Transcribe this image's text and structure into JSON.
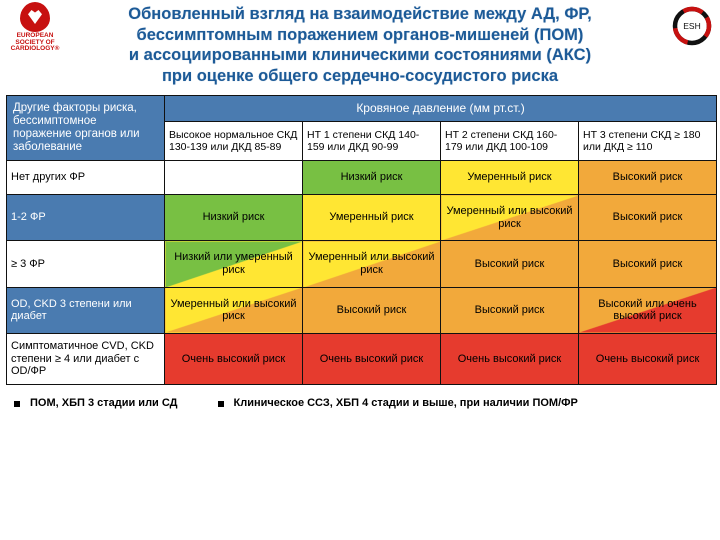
{
  "logos": {
    "esc_lines": [
      "EUROPEAN",
      "SOCIETY OF",
      "CARDIOLOGY®"
    ],
    "esh_label": "ESH"
  },
  "title_lines": [
    "Обновленный взгляд на взаимодействие между АД, ФР,",
    "бессимптомным поражением органов-мишеней (ПОМ)",
    "и ассоциированными клиническими состояниями (АКС)",
    "при оценке общего сердечно-сосудистого риска"
  ],
  "table": {
    "corner": "Другие факторы риска, бессимптомное поражение органов или заболевание",
    "bp_header": "Кровяное давление (мм рт.ст.)",
    "bp_cols": [
      "Высокое нормальное СКД 130-139 или ДКД 85-89",
      "НТ 1 степени СКД 140-159 или ДКД 90-99",
      "НТ 2 степени СКД 160-179 или ДКД 100-109",
      "НТ 3 степени СКД ≥ 180 или ДКД ≥ 110"
    ],
    "rows": [
      {
        "label": "Нет других ФР",
        "label_blue": false,
        "cells": [
          {
            "text": "",
            "bg": "#ffffff"
          },
          {
            "text": "Низкий риск",
            "bg": "#78c043"
          },
          {
            "text": "Умеренный риск",
            "bg": "#ffe633"
          },
          {
            "text": "Высокий риск",
            "bg": "#f2a93b"
          }
        ]
      },
      {
        "label": "1-2 ФР",
        "label_blue": true,
        "cells": [
          {
            "text": "Низкий риск",
            "bg": "#78c043"
          },
          {
            "text": "Умеренный риск",
            "bg": "#ffe633"
          },
          {
            "text": "Умеренный или высокий риск",
            "bg_from": "#ffe633",
            "bg_to": "#f2a93b"
          },
          {
            "text": "Высокий риск",
            "bg": "#f2a93b"
          }
        ]
      },
      {
        "label": "≥ 3 ФР",
        "label_blue": false,
        "cells": [
          {
            "text": "Низкий или умеренный риск",
            "bg_from": "#78c043",
            "bg_to": "#ffe633"
          },
          {
            "text": "Умеренный или высокий риск",
            "bg_from": "#ffe633",
            "bg_to": "#f2a93b"
          },
          {
            "text": "Высокий риск",
            "bg": "#f2a93b"
          },
          {
            "text": "Высокий риск",
            "bg": "#f2a93b"
          }
        ]
      },
      {
        "label": "OD, CKD 3 степени или диабет",
        "label_blue": true,
        "cells": [
          {
            "text": "Умеренный или высокий риск",
            "bg_from": "#ffe633",
            "bg_to": "#f2a93b"
          },
          {
            "text": "Высокий риск",
            "bg": "#f2a93b"
          },
          {
            "text": "Высокий риск",
            "bg": "#f2a93b"
          },
          {
            "text": "Высокий или очень высокий риск",
            "bg_from": "#f2a93b",
            "bg_to": "#e63b2e"
          }
        ]
      },
      {
        "label": "Симптоматичное CVD, CKD степени ≥ 4 или диабет с OD/ФР",
        "label_blue": false,
        "cells": [
          {
            "text": "Очень высокий риск",
            "bg": "#e63b2e"
          },
          {
            "text": "Очень высокий риск",
            "bg": "#e63b2e"
          },
          {
            "text": "Очень высокий риск",
            "bg": "#e63b2e"
          },
          {
            "text": "Очень высокий риск",
            "bg": "#e63b2e"
          }
        ]
      }
    ]
  },
  "footnotes": [
    "ПОМ, ХБП 3 стадии или СД",
    "Клиническое ССЗ, ХБП 4 стадии и выше, при наличии ПОМ/ФР"
  ],
  "colors": {
    "header_blue": "#4a7bb0",
    "title_blue": "#1c5a97",
    "green": "#78c043",
    "yellow": "#ffe633",
    "orange": "#f2a93b",
    "red": "#e63b2e"
  }
}
